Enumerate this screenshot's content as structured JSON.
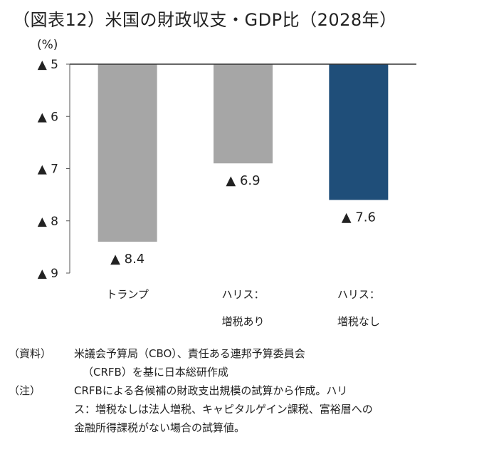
{
  "title": "（図表12）米国の財政収支・GDP比（2028年）",
  "chart_data": {
    "type": "bar",
    "unit": "(%)",
    "categories": [
      [
        "トランプ"
      ],
      [
        "ハリス：",
        "増税あり"
      ],
      [
        "ハリス：",
        "増税なし"
      ]
    ],
    "values": [
      -8.4,
      -6.9,
      -7.6
    ],
    "value_labels": [
      "▲ 8.4",
      "▲ 6.9",
      "▲ 7.6"
    ],
    "bar_colors": [
      "#a6a6a6",
      "#a6a6a6",
      "#1f4e79"
    ],
    "ylim": [
      -5,
      -9
    ],
    "yticks": [
      -5,
      -6,
      -7,
      -8,
      -9
    ],
    "ytick_labels": [
      "▲ 5",
      "▲ 6",
      "▲ 7",
      "▲ 8",
      "▲ 9"
    ],
    "grid": false
  },
  "notes": {
    "source_tag": "（資料）",
    "source_lines": [
      "米議会予算局（CBO）、責任ある連邦予算委員会",
      "（CRFB）を基に日本総研作成"
    ],
    "note_tag": "（注）",
    "note_lines": [
      "CRFBによる各候補の財政支出規模の試算から作成。ハリ",
      "ス：増税なしは法人増税、キャピタルゲイン課税、富裕層への",
      "金融所得課税がない場合の試算値。"
    ]
  }
}
